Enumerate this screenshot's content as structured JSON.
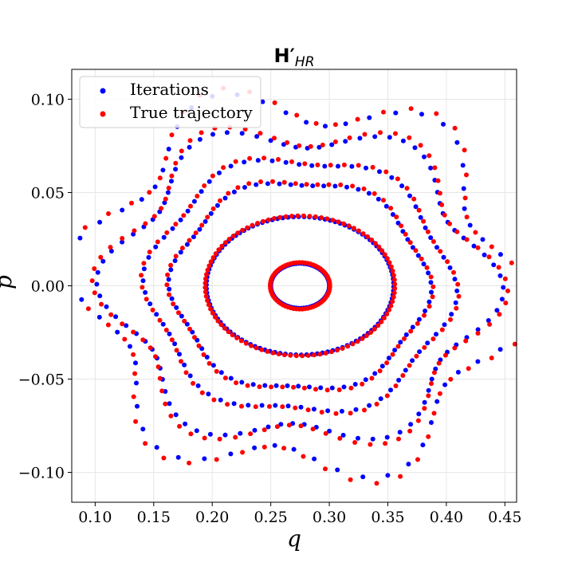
{
  "chart_data": {
    "type": "scatter",
    "title": "H′",
    "title_subscript": "HR",
    "xlabel": "q",
    "ylabel": "p",
    "xlim": [
      0.08,
      0.46
    ],
    "ylim": [
      -0.116,
      0.116
    ],
    "xticks": [
      0.1,
      0.15,
      0.2,
      0.25,
      0.3,
      0.35,
      0.4,
      0.45
    ],
    "xtick_labels": [
      "0.10",
      "0.15",
      "0.20",
      "0.25",
      "0.30",
      "0.35",
      "0.40",
      "0.45"
    ],
    "yticks": [
      -0.1,
      -0.05,
      0.0,
      0.05,
      0.1
    ],
    "ytick_labels": [
      "−0.10",
      "−0.05",
      "0.00",
      "0.05",
      "0.10"
    ],
    "grid": true,
    "legend_position": "top-left",
    "center": [
      0.275,
      0.0
    ],
    "series": [
      {
        "name": "Iterations",
        "color": "#0000ff",
        "orbits": [
          {
            "rx": 0.025,
            "ry": 0.012,
            "n": 70,
            "phase": 0.0,
            "amp": 0.0,
            "k": 0
          },
          {
            "rx": 0.08,
            "ry": 0.037,
            "n": 110,
            "phase": 0.1,
            "amp": 0.0,
            "k": 0
          },
          {
            "rx": 0.108,
            "ry": 0.056,
            "n": 70,
            "phase": 0.3,
            "amp": 0.04,
            "k": 6
          },
          {
            "rx": 0.128,
            "ry": 0.068,
            "n": 70,
            "phase": 0.5,
            "amp": 0.05,
            "k": 6
          },
          {
            "rx": 0.158,
            "ry": 0.082,
            "n": 90,
            "phase": 0.2,
            "amp": 0.1,
            "k": 6
          },
          {
            "rx": 0.178,
            "ry": 0.098,
            "n": 60,
            "phase": 0.7,
            "amp": 0.12,
            "k": 6
          }
        ]
      },
      {
        "name": "True trajectory",
        "color": "#ff0000",
        "orbits": [
          {
            "rx": 0.0255,
            "ry": 0.0125,
            "n": 65,
            "phase": 0.05,
            "amp": 0.0,
            "k": 0
          },
          {
            "rx": 0.081,
            "ry": 0.0375,
            "n": 100,
            "phase": 0.15,
            "amp": 0.0,
            "k": 0
          },
          {
            "rx": 0.109,
            "ry": 0.057,
            "n": 70,
            "phase": 0.35,
            "amp": 0.045,
            "k": 6
          },
          {
            "rx": 0.129,
            "ry": 0.069,
            "n": 70,
            "phase": 0.55,
            "amp": 0.055,
            "k": 6
          },
          {
            "rx": 0.16,
            "ry": 0.084,
            "n": 90,
            "phase": 0.25,
            "amp": 0.11,
            "k": 6
          },
          {
            "rx": 0.18,
            "ry": 0.1,
            "n": 60,
            "phase": 0.75,
            "amp": 0.13,
            "k": 6
          }
        ]
      }
    ]
  }
}
